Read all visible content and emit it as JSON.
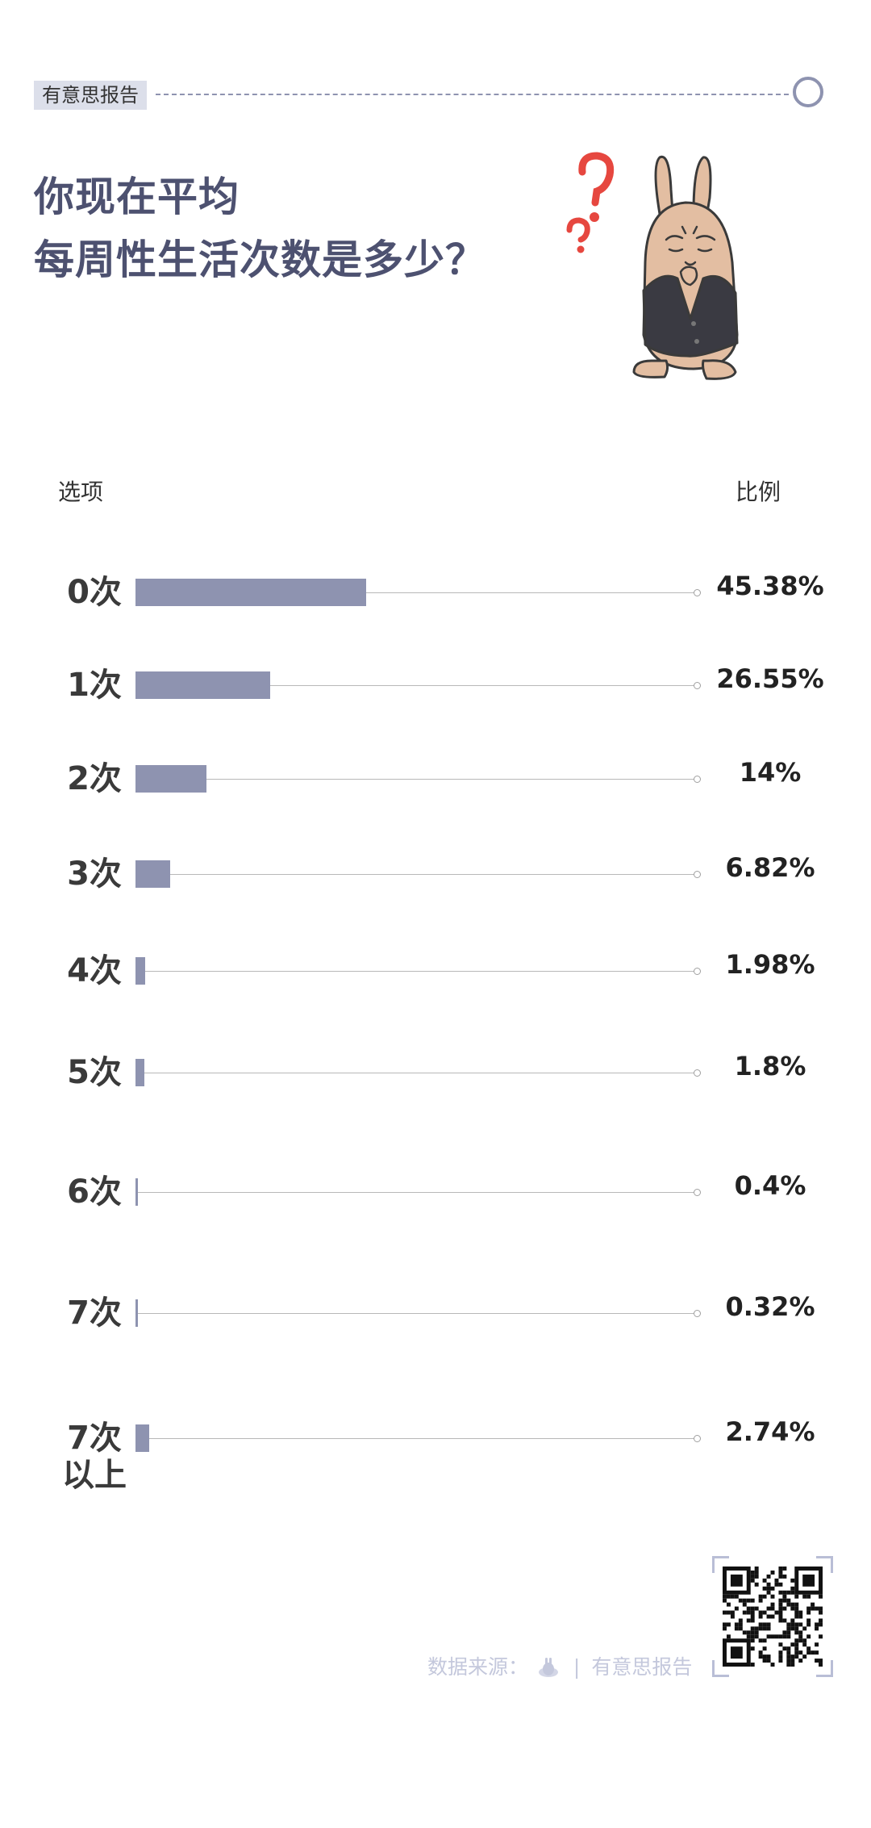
{
  "header": {
    "brand_tag": "有意思报告"
  },
  "title": {
    "line1": "你现在平均",
    "line2": "每周性生活次数是多少？"
  },
  "table": {
    "col_option": "选项",
    "col_ratio": "比例"
  },
  "chart_data": {
    "type": "bar",
    "orientation": "horizontal",
    "categories": [
      "0次",
      "1次",
      "2次",
      "3次",
      "4次",
      "5次",
      "6次",
      "7次",
      "7次\n以上"
    ],
    "values": [
      45.38,
      26.55,
      14,
      6.82,
      1.98,
      1.8,
      0.4,
      0.32,
      2.74
    ],
    "value_labels": [
      "45.38%",
      "26.55%",
      "14%",
      "6.82%",
      "1.98%",
      "1.8%",
      "0.4%",
      "0.32%",
      "2.74%"
    ],
    "xlim": [
      0,
      100
    ],
    "title": "你现在平均每周性生活次数是多少？",
    "bar_color": "#8e93b0"
  },
  "footer": {
    "source_label": "数据来源：",
    "brand": "有意思报告"
  },
  "colors": {
    "accent": "#8e93b0",
    "title": "#4d5170",
    "tag_bg": "#dcdfea",
    "footer_text": "#c4c8dc"
  },
  "icons": {
    "mascot": "thinking-rabbit-illustration",
    "question_marks": "red-question-marks",
    "header_circle": "ring-icon",
    "qr": "qr-code"
  }
}
